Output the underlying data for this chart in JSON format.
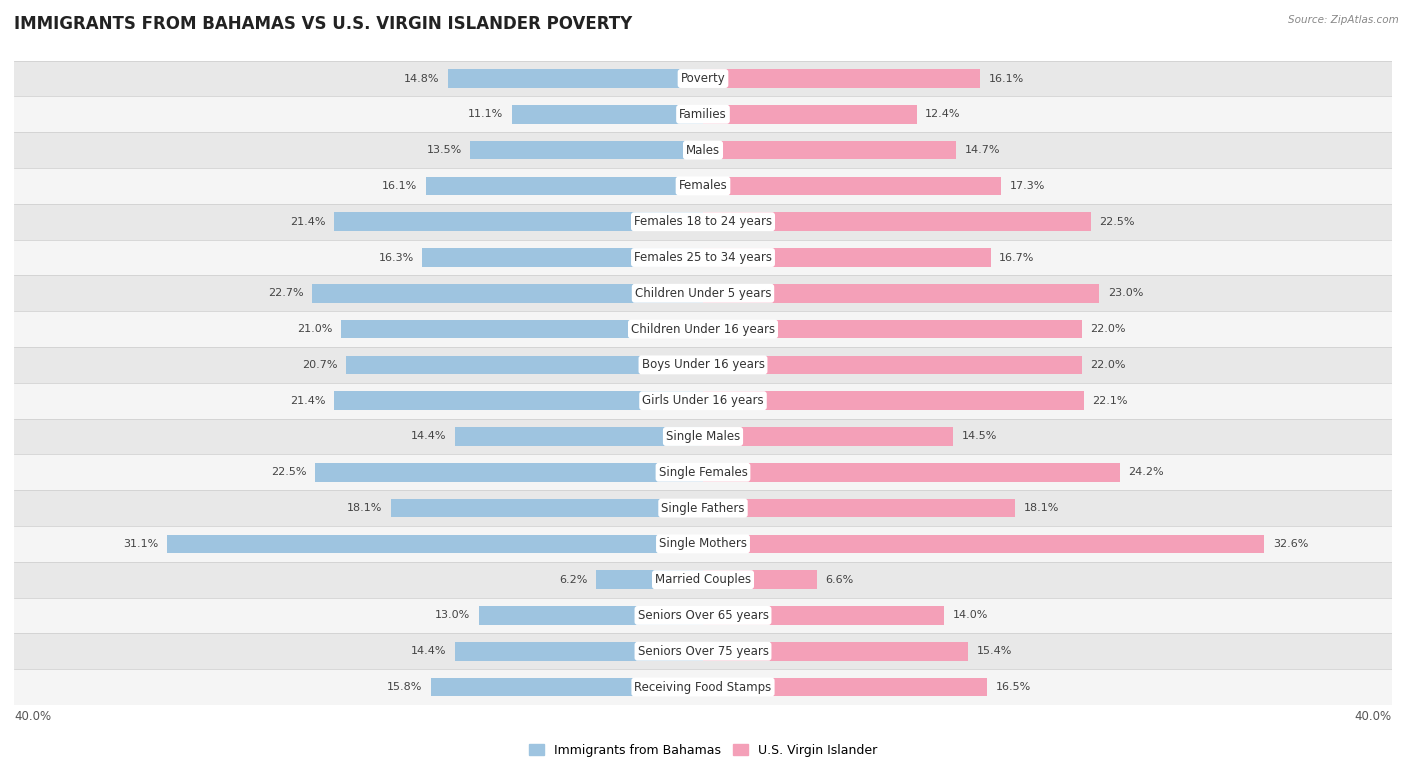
{
  "title": "IMMIGRANTS FROM BAHAMAS VS U.S. VIRGIN ISLANDER POVERTY",
  "source": "Source: ZipAtlas.com",
  "categories": [
    "Poverty",
    "Families",
    "Males",
    "Females",
    "Females 18 to 24 years",
    "Females 25 to 34 years",
    "Children Under 5 years",
    "Children Under 16 years",
    "Boys Under 16 years",
    "Girls Under 16 years",
    "Single Males",
    "Single Females",
    "Single Fathers",
    "Single Mothers",
    "Married Couples",
    "Seniors Over 65 years",
    "Seniors Over 75 years",
    "Receiving Food Stamps"
  ],
  "left_values": [
    14.8,
    11.1,
    13.5,
    16.1,
    21.4,
    16.3,
    22.7,
    21.0,
    20.7,
    21.4,
    14.4,
    22.5,
    18.1,
    31.1,
    6.2,
    13.0,
    14.4,
    15.8
  ],
  "right_values": [
    16.1,
    12.4,
    14.7,
    17.3,
    22.5,
    16.7,
    23.0,
    22.0,
    22.0,
    22.1,
    14.5,
    24.2,
    18.1,
    32.6,
    6.6,
    14.0,
    15.4,
    16.5
  ],
  "left_color": "#9ec4e0",
  "right_color": "#f4a0b8",
  "left_label": "Immigrants from Bahamas",
  "right_label": "U.S. Virgin Islander",
  "x_max": 40.0,
  "background_color": "#ffffff",
  "row_colors": [
    "#e8e8e8",
    "#f5f5f5"
  ],
  "separator_color": "#cccccc",
  "title_fontsize": 12,
  "label_fontsize": 8.5,
  "value_fontsize": 8,
  "axis_label_fontsize": 8.5
}
